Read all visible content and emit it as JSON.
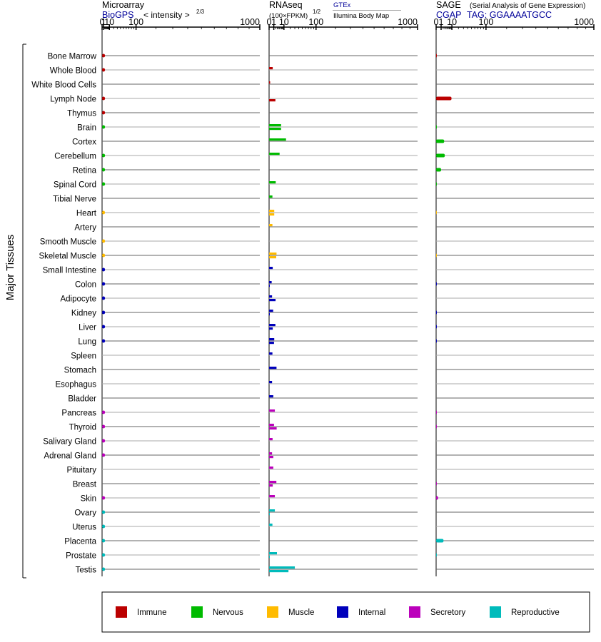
{
  "chart_data": {
    "type": "bar",
    "y_group_label": "Major Tissues",
    "tissues": [
      "Bone Marrow",
      "Whole Blood",
      "White Blood Cells",
      "Lymph Node",
      "Thymus",
      "Brain",
      "Cortex",
      "Cerebellum",
      "Retina",
      "Spinal Cord",
      "Tibial Nerve",
      "Heart",
      "Artery",
      "Smooth Muscle",
      "Skeletal Muscle",
      "Small Intestine",
      "Colon",
      "Adipocyte",
      "Kidney",
      "Liver",
      "Lung",
      "Spleen",
      "Stomach",
      "Esophagus",
      "Bladder",
      "Pancreas",
      "Thyroid",
      "Salivary Gland",
      "Adrenal Gland",
      "Pituitary",
      "Breast",
      "Skin",
      "Ovary",
      "Uterus",
      "Placenta",
      "Prostate",
      "Testis"
    ],
    "tissue_category": [
      "immune",
      "immune",
      "immune",
      "immune",
      "immune",
      "nervous",
      "nervous",
      "nervous",
      "nervous",
      "nervous",
      "nervous",
      "muscle",
      "muscle",
      "muscle",
      "muscle",
      "internal",
      "internal",
      "internal",
      "internal",
      "internal",
      "internal",
      "internal",
      "internal",
      "internal",
      "internal",
      "secretory",
      "secretory",
      "secretory",
      "secretory",
      "secretory",
      "secretory",
      "secretory",
      "reproductive",
      "reproductive",
      "reproductive",
      "reproductive",
      "reproductive"
    ],
    "categories": [
      {
        "key": "immune",
        "label": "Immune",
        "color": "#bb0000"
      },
      {
        "key": "nervous",
        "label": "Nervous",
        "color": "#00bb00"
      },
      {
        "key": "muscle",
        "label": "Muscle",
        "color": "#ffbb00"
      },
      {
        "key": "internal",
        "label": "Internal",
        "color": "#0000bb"
      },
      {
        "key": "secretory",
        "label": "Secretory",
        "color": "#bb00bb"
      },
      {
        "key": "reproductive",
        "label": "Reproductive",
        "color": "#00bbbb"
      }
    ],
    "panels": [
      {
        "key": "microarray",
        "title": "Microarray",
        "source": "BioGPS",
        "subtitle": "< intensity >",
        "exponent": "2/3",
        "x_ticks": [
          "0",
          "1",
          "10",
          "100",
          "1000"
        ],
        "xlim": [
          0,
          1000
        ],
        "values": [
          2.6,
          2.6,
          0,
          2.6,
          2.6,
          2.6,
          0,
          2.6,
          2.6,
          2.6,
          0,
          2.5,
          0,
          2.6,
          2.6,
          2.6,
          2.6,
          2.6,
          2.6,
          2.6,
          2.6,
          0,
          0,
          0,
          0,
          2.6,
          2.6,
          2.6,
          2.6,
          0,
          0,
          2.6,
          2.6,
          2.6,
          2.6,
          2.6,
          2.6
        ]
      },
      {
        "key": "rnaseq",
        "title": "RNAseq",
        "subtitle": "(100×FPKM)",
        "exponent": "1/2",
        "x_ticks": [
          "0",
          "1",
          "10",
          "100",
          "1000"
        ],
        "xlim": [
          0,
          1000
        ],
        "series_names": [
          "GTEx",
          "Illumina Body Map"
        ],
        "values_a": [
          0,
          0.6,
          0.05,
          0,
          0,
          6.5,
          13,
          5,
          0,
          2,
          0.5,
          1.2,
          0.5,
          0,
          2.5,
          0.6,
          0.3,
          0.4,
          0.75,
          1.8,
          1.2,
          0.5,
          2.5,
          0.4,
          0.8,
          1.5,
          1.1,
          0.55,
          0.4,
          0.8,
          2.4,
          1.5,
          1.5,
          0.5,
          0,
          2.8,
          30
        ],
        "values_b": [
          0,
          0,
          0,
          1.8,
          0,
          6.5,
          0,
          0,
          0,
          0,
          0,
          1.2,
          0,
          0,
          2.3,
          0,
          0.02,
          1.9,
          0.02,
          0.6,
          1.1,
          0,
          0,
          0,
          0,
          0,
          2.6,
          0,
          0.8,
          0,
          0.6,
          0,
          0.02,
          0,
          0,
          0.02,
          17
        ]
      },
      {
        "key": "sage",
        "title": "SAGE",
        "subtitle": "(Serial Analysis of Gene Expression)",
        "source": "CGAP",
        "tag_label": "TAG: GGAAAATGCC",
        "x_ticks": [
          "0",
          "1",
          "10",
          "100",
          "1000"
        ],
        "xlim": [
          0,
          1000
        ],
        "values": [
          0.01,
          0,
          0,
          9.5,
          0,
          0.02,
          2.6,
          3,
          1,
          0.02,
          0,
          0.005,
          0,
          0,
          0.005,
          0,
          0.01,
          0,
          0.02,
          0.02,
          0.02,
          0,
          0,
          0,
          0,
          0.02,
          0.02,
          0,
          0,
          0,
          0.02,
          0.15,
          0,
          0,
          2.2,
          0.02,
          0
        ]
      }
    ]
  }
}
